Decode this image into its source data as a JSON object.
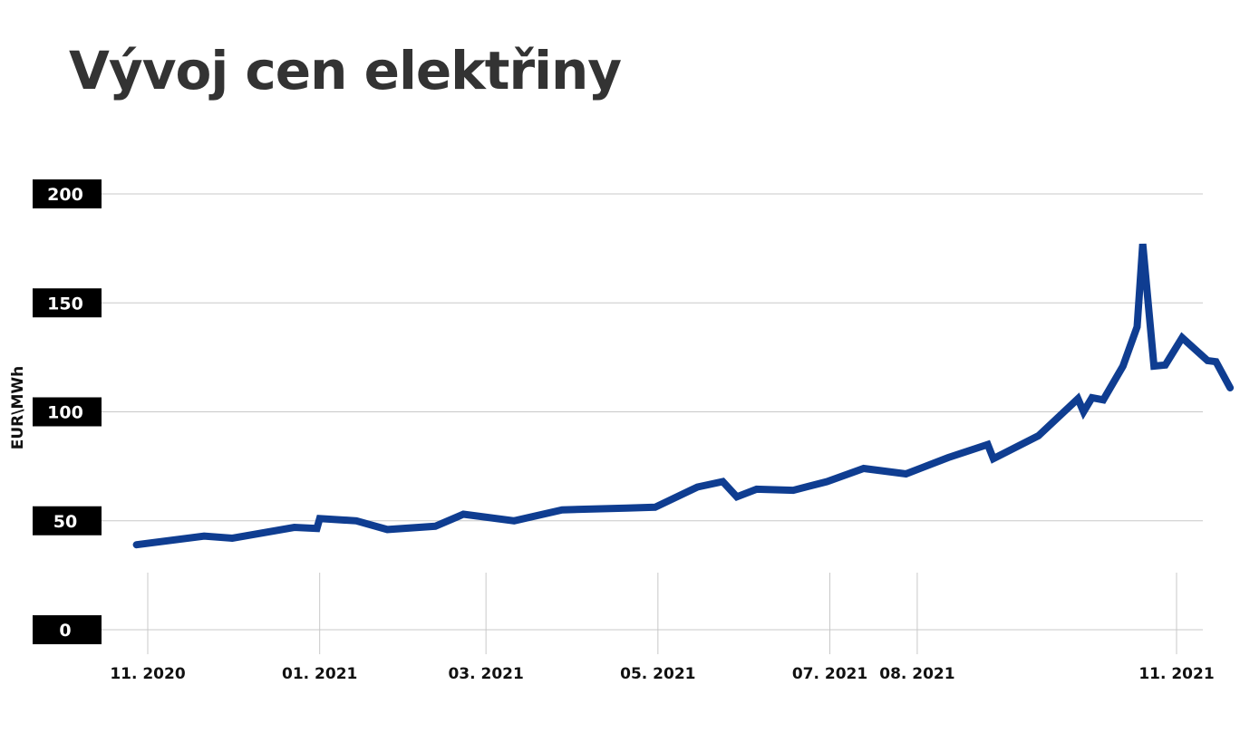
{
  "chart_data": {
    "type": "line",
    "title": "Vývoj cen elektřiny",
    "xlabel": "",
    "ylabel": "EUR\\MWh",
    "ylim": [
      0,
      200
    ],
    "yticks": [
      0,
      50,
      100,
      150,
      200
    ],
    "xticks": [
      {
        "label": "11. 2020",
        "x": "2020-11-01"
      },
      {
        "label": "01. 2021",
        "x": "2021-01-01"
      },
      {
        "label": "03. 2021",
        "x": "2021-03-01"
      },
      {
        "label": "05. 2021",
        "x": "2021-05-01"
      },
      {
        "label": "07. 2021",
        "x": "2021-07-01"
      },
      {
        "label": "08. 2021",
        "x": "2021-08-01"
      },
      {
        "label": "11. 2021",
        "x": "2021-11-01"
      }
    ],
    "grid": true,
    "line_color": "#0f3d91",
    "series": [
      {
        "points": [
          {
            "x": "2020-10-28",
            "y": 39
          },
          {
            "x": "2020-11-21",
            "y": 43
          },
          {
            "x": "2020-12-01",
            "y": 42
          },
          {
            "x": "2020-12-23",
            "y": 47
          },
          {
            "x": "2020-12-31",
            "y": 46.5
          },
          {
            "x": "2021-01-01",
            "y": 51
          },
          {
            "x": "2021-01-14",
            "y": 50
          },
          {
            "x": "2021-01-25",
            "y": 46
          },
          {
            "x": "2021-02-11",
            "y": 47.5
          },
          {
            "x": "2021-02-21",
            "y": 53
          },
          {
            "x": "2021-03-11",
            "y": 50
          },
          {
            "x": "2021-03-28",
            "y": 55
          },
          {
            "x": "2021-04-20",
            "y": 55.8
          },
          {
            "x": "2021-04-30",
            "y": 56.2
          },
          {
            "x": "2021-05-15",
            "y": 65.5
          },
          {
            "x": "2021-05-24",
            "y": 68
          },
          {
            "x": "2021-05-29",
            "y": 61
          },
          {
            "x": "2021-06-05",
            "y": 64.5
          },
          {
            "x": "2021-06-18",
            "y": 64
          },
          {
            "x": "2021-06-30",
            "y": 68
          },
          {
            "x": "2021-07-13",
            "y": 74
          },
          {
            "x": "2021-07-28",
            "y": 71.5
          },
          {
            "x": "2021-08-12",
            "y": 79
          },
          {
            "x": "2021-08-26",
            "y": 85
          },
          {
            "x": "2021-08-28",
            "y": 78.5
          },
          {
            "x": "2021-09-13",
            "y": 89
          },
          {
            "x": "2021-09-27",
            "y": 106
          },
          {
            "x": "2021-09-29",
            "y": 100
          },
          {
            "x": "2021-10-02",
            "y": 106.5
          },
          {
            "x": "2021-10-06",
            "y": 105.5
          },
          {
            "x": "2021-10-13",
            "y": 121
          },
          {
            "x": "2021-10-18",
            "y": 139
          },
          {
            "x": "2021-10-20",
            "y": 177
          },
          {
            "x": "2021-10-24",
            "y": 121
          },
          {
            "x": "2021-10-28",
            "y": 121.5
          },
          {
            "x": "2021-11-03",
            "y": 134
          },
          {
            "x": "2021-11-12",
            "y": 123.5
          },
          {
            "x": "2021-11-15",
            "y": 123
          },
          {
            "x": "2021-11-20",
            "y": 111
          }
        ]
      }
    ]
  }
}
